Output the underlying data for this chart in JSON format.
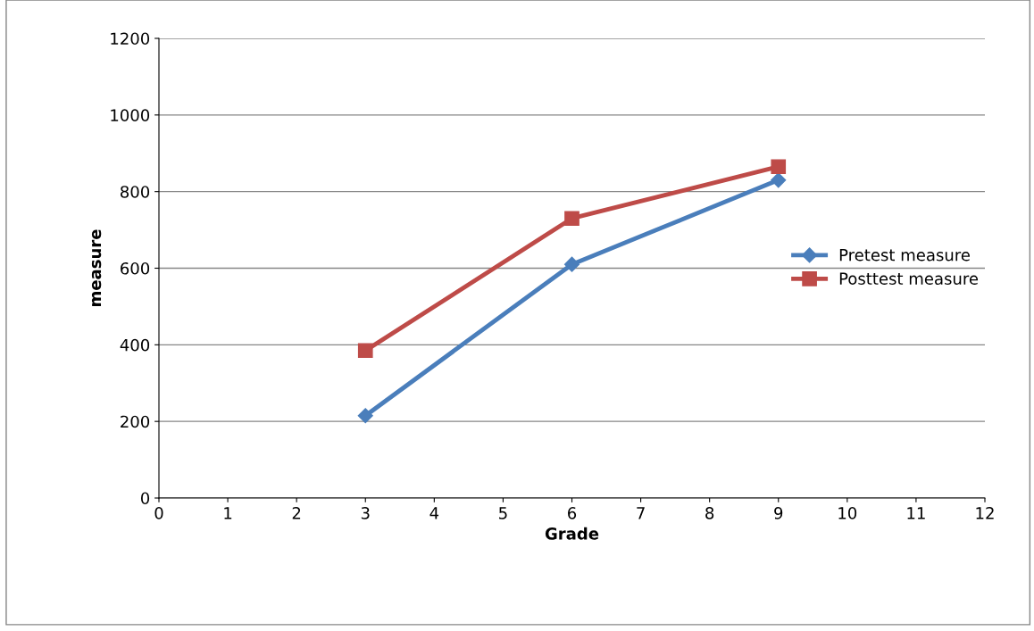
{
  "chart_data": {
    "type": "line",
    "xlabel": "Grade",
    "ylabel": "measure",
    "xlim": [
      0,
      12
    ],
    "xticks": [
      0,
      1,
      2,
      3,
      4,
      5,
      6,
      7,
      8,
      9,
      10,
      11,
      12
    ],
    "ylim": [
      0,
      1200
    ],
    "yticks": [
      0,
      200,
      400,
      600,
      800,
      1000,
      1200
    ],
    "grid": "y",
    "legend": "right",
    "series": [
      {
        "name": "Pretest measure",
        "color": "#4a7ebb",
        "marker": "diamond",
        "x": [
          3,
          6,
          9
        ],
        "values": [
          215,
          610,
          830
        ]
      },
      {
        "name": "Posttest measure",
        "color": "#be4b48",
        "marker": "square",
        "x": [
          3,
          6,
          9
        ],
        "values": [
          385,
          730,
          865
        ]
      }
    ]
  }
}
